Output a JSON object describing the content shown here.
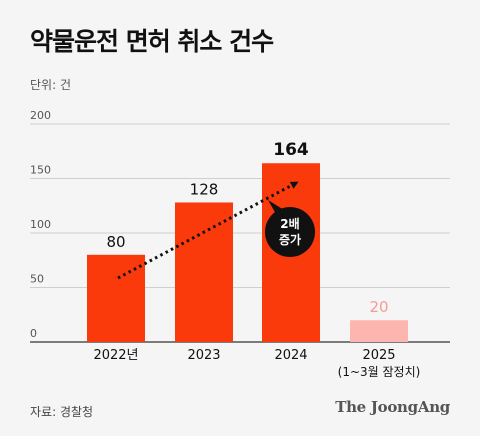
{
  "title": "약물운전 면허 취소 건수",
  "unit_label": "단위: 건",
  "source": "자료: 경찰청",
  "brand": "The JoongAng",
  "colors": {
    "bar": "#fb3a0b",
    "bar_partial": "#fdb5b0",
    "partial_label": "#f79b96",
    "gridline": "#cfcfcf",
    "badge": "#111111"
  },
  "annotation": {
    "line1": "2배",
    "line2": "증가"
  },
  "chart_data": {
    "type": "bar",
    "categories": [
      "2022년",
      "2023",
      "2024",
      "2025"
    ],
    "category_sublabels": [
      "",
      "",
      "",
      "(1~3월 잠정치)"
    ],
    "values": [
      80,
      128,
      164,
      20
    ],
    "data_labels": [
      "80",
      "128",
      "164",
      "20"
    ],
    "highlight_index": 2,
    "partial_index": 3,
    "ylim": [
      0,
      200
    ],
    "yticks": [
      0,
      50,
      100,
      150,
      200
    ],
    "ytick_labels": [
      "0",
      "50",
      "100",
      "150",
      "200"
    ],
    "grid": true,
    "legend": "none",
    "title": "약물운전 면허 취소 건수",
    "xlabel": "",
    "ylabel": ""
  }
}
